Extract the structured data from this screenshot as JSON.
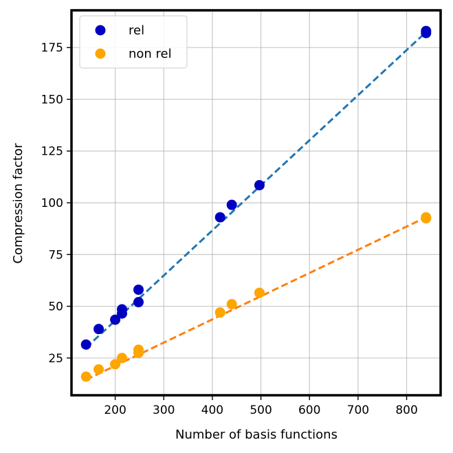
{
  "chart_data": {
    "type": "scatter",
    "title": "",
    "xlabel": "Number of basis functions",
    "ylabel": "Compression factor",
    "xlim": [
      110,
      870
    ],
    "ylim": [
      7,
      193
    ],
    "xticks": [
      200,
      300,
      400,
      500,
      600,
      700,
      800
    ],
    "yticks": [
      25,
      50,
      75,
      100,
      125,
      150,
      175
    ],
    "grid": true,
    "legend_position": "top-left",
    "series": [
      {
        "name": "rel",
        "color": "#0000c0",
        "fit_color": "#1f77b4",
        "points": [
          [
            140,
            31.5
          ],
          [
            166,
            39
          ],
          [
            200,
            43.5
          ],
          [
            214,
            46.5
          ],
          [
            214,
            48.5
          ],
          [
            248,
            52
          ],
          [
            248,
            58
          ],
          [
            416,
            93
          ],
          [
            440,
            99
          ],
          [
            497,
            108.5
          ],
          [
            840,
            182
          ],
          [
            840,
            183
          ]
        ],
        "fit": [
          [
            140,
            30
          ],
          [
            840,
            182.5
          ]
        ]
      },
      {
        "name": "non rel",
        "color": "#ffa500",
        "fit_color": "#ff7f0e",
        "points": [
          [
            140,
            16
          ],
          [
            166,
            19.5
          ],
          [
            200,
            22
          ],
          [
            214,
            25
          ],
          [
            248,
            27.5
          ],
          [
            248,
            29
          ],
          [
            416,
            47
          ],
          [
            440,
            51
          ],
          [
            497,
            56.5
          ],
          [
            840,
            92.5
          ],
          [
            840,
            93
          ]
        ],
        "fit": [
          [
            140,
            14.5
          ],
          [
            840,
            93
          ]
        ]
      }
    ]
  }
}
